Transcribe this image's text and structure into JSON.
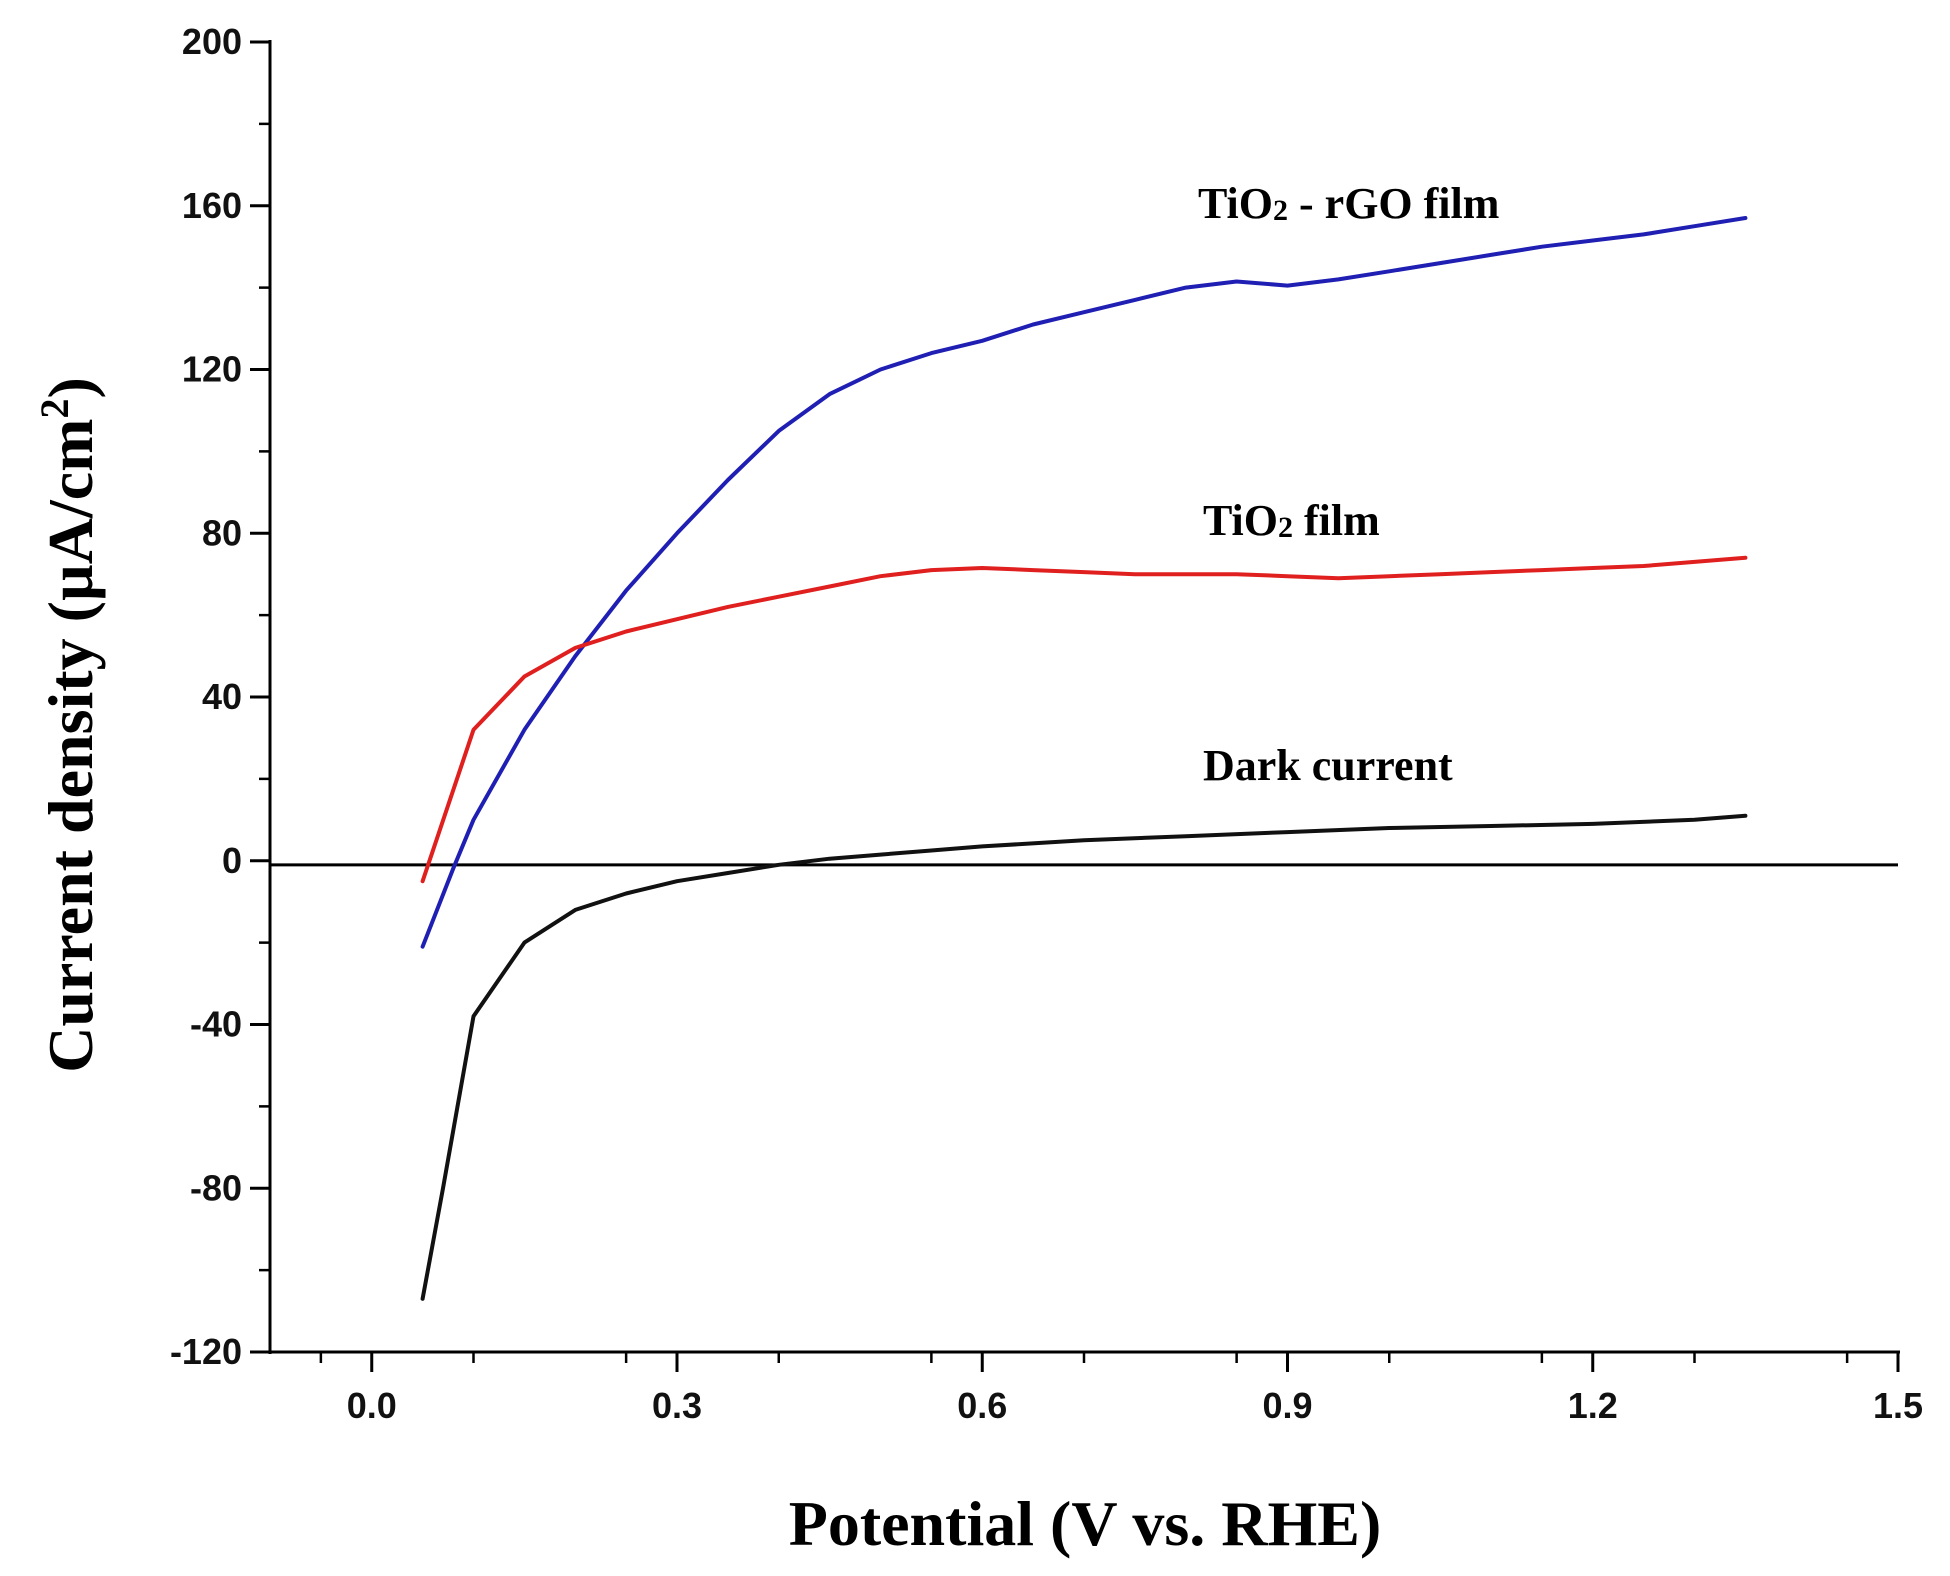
{
  "chart_data": {
    "type": "line",
    "xlabel": "Potential (V vs. RHE)",
    "ylabel": "Current density (µA/cm2)",
    "ylabel_main": "Current density (µA/cm",
    "ylabel_sup": "2",
    "ylabel_close": ")",
    "xlim": [
      -0.1,
      1.5
    ],
    "ylim": [
      -120,
      200
    ],
    "x_ticks": [
      "0.0",
      "0.3",
      "0.6",
      "0.9",
      "1.2",
      "1.5"
    ],
    "y_ticks": [
      "200",
      "160",
      "120",
      "80",
      "40",
      "0",
      "-40",
      "-80",
      "-120"
    ],
    "x_tick_values": [
      0.0,
      0.3,
      0.6,
      0.9,
      1.2,
      1.5
    ],
    "y_tick_values": [
      200,
      160,
      120,
      80,
      40,
      0,
      -40,
      -80,
      -120
    ],
    "reference_line_y": -1,
    "series": [
      {
        "name": "TiO2 - rGO film",
        "label_main": "TiO",
        "label_sub": "2",
        "label_rest": " - rGO film",
        "color": "#1f1fb4",
        "x": [
          0.05,
          0.08,
          0.1,
          0.15,
          0.2,
          0.25,
          0.3,
          0.35,
          0.4,
          0.45,
          0.5,
          0.55,
          0.6,
          0.65,
          0.7,
          0.75,
          0.8,
          0.85,
          0.9,
          0.95,
          1.0,
          1.05,
          1.1,
          1.15,
          1.2,
          1.25,
          1.3,
          1.35
        ],
        "y": [
          -21,
          -2,
          10,
          32,
          50,
          66,
          80,
          93,
          105,
          114,
          120,
          124,
          127,
          131,
          134,
          137,
          140,
          141.5,
          140.5,
          142,
          144,
          146,
          148,
          150,
          151.5,
          153,
          155,
          157
        ]
      },
      {
        "name": "TiO2 film",
        "label_main": "TiO",
        "label_sub": "2",
        "label_rest": " film",
        "color": "#e01f1f",
        "x": [
          0.05,
          0.1,
          0.15,
          0.2,
          0.25,
          0.3,
          0.35,
          0.4,
          0.45,
          0.5,
          0.55,
          0.6,
          0.65,
          0.7,
          0.75,
          0.8,
          0.85,
          0.9,
          0.95,
          1.0,
          1.05,
          1.1,
          1.15,
          1.2,
          1.25,
          1.3,
          1.35
        ],
        "y": [
          -5,
          32,
          45,
          52,
          56,
          59,
          62,
          64.5,
          67,
          69.5,
          71,
          71.5,
          71,
          70.5,
          70,
          70,
          70,
          69.5,
          69,
          69.5,
          70,
          70.5,
          71,
          71.5,
          72,
          73,
          74
        ]
      },
      {
        "name": "Dark current",
        "label_main": "Dark current",
        "label_sub": "",
        "label_rest": "",
        "color": "#111111",
        "x": [
          0.05,
          0.07,
          0.1,
          0.15,
          0.2,
          0.25,
          0.3,
          0.35,
          0.4,
          0.45,
          0.5,
          0.55,
          0.6,
          0.7,
          0.8,
          0.9,
          1.0,
          1.1,
          1.2,
          1.3,
          1.35
        ],
        "y": [
          -107,
          -80,
          -38,
          -20,
          -12,
          -8,
          -5,
          -3,
          -1,
          0.5,
          1.5,
          2.5,
          3.5,
          5,
          6,
          7,
          8,
          8.5,
          9,
          10,
          11
        ]
      }
    ]
  }
}
